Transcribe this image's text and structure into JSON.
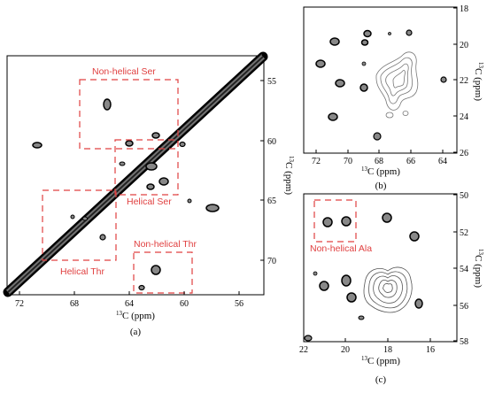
{
  "figure": {
    "panels": [
      {
        "id": "a",
        "caption": "(a)",
        "xlabel_sup": "13",
        "xlabel": "C (ppm)",
        "ylabel_sup": "13",
        "ylabel": "C (ppm)",
        "xticks": [
          "72",
          "68",
          "64",
          "60",
          "56"
        ],
        "yticks": [
          "55",
          "60",
          "65",
          "70"
        ],
        "annotations": [
          "Non-helical Ser",
          "Helical Ser",
          "Helical Thr",
          "Non-helical Thr"
        ]
      },
      {
        "id": "b",
        "caption": "(b)",
        "xlabel_sup": "13",
        "xlabel": "C (ppm)",
        "ylabel_sup": "13",
        "ylabel": "C (ppm)",
        "xticks": [
          "72",
          "70",
          "68",
          "66",
          "64"
        ],
        "yticks": [
          "18",
          "20",
          "22",
          "24",
          "26"
        ],
        "annotations": []
      },
      {
        "id": "c",
        "caption": "(c)",
        "xlabel_sup": "13",
        "xlabel": "C (ppm)",
        "ylabel_sup": "13",
        "ylabel": "C (ppm)",
        "xticks": [
          "22",
          "20",
          "18",
          "16"
        ],
        "yticks": [
          "50",
          "52",
          "54",
          "56",
          "58"
        ],
        "annotations": [
          "Non-helical Ala"
        ]
      }
    ],
    "annotation_color": "#e04040"
  }
}
